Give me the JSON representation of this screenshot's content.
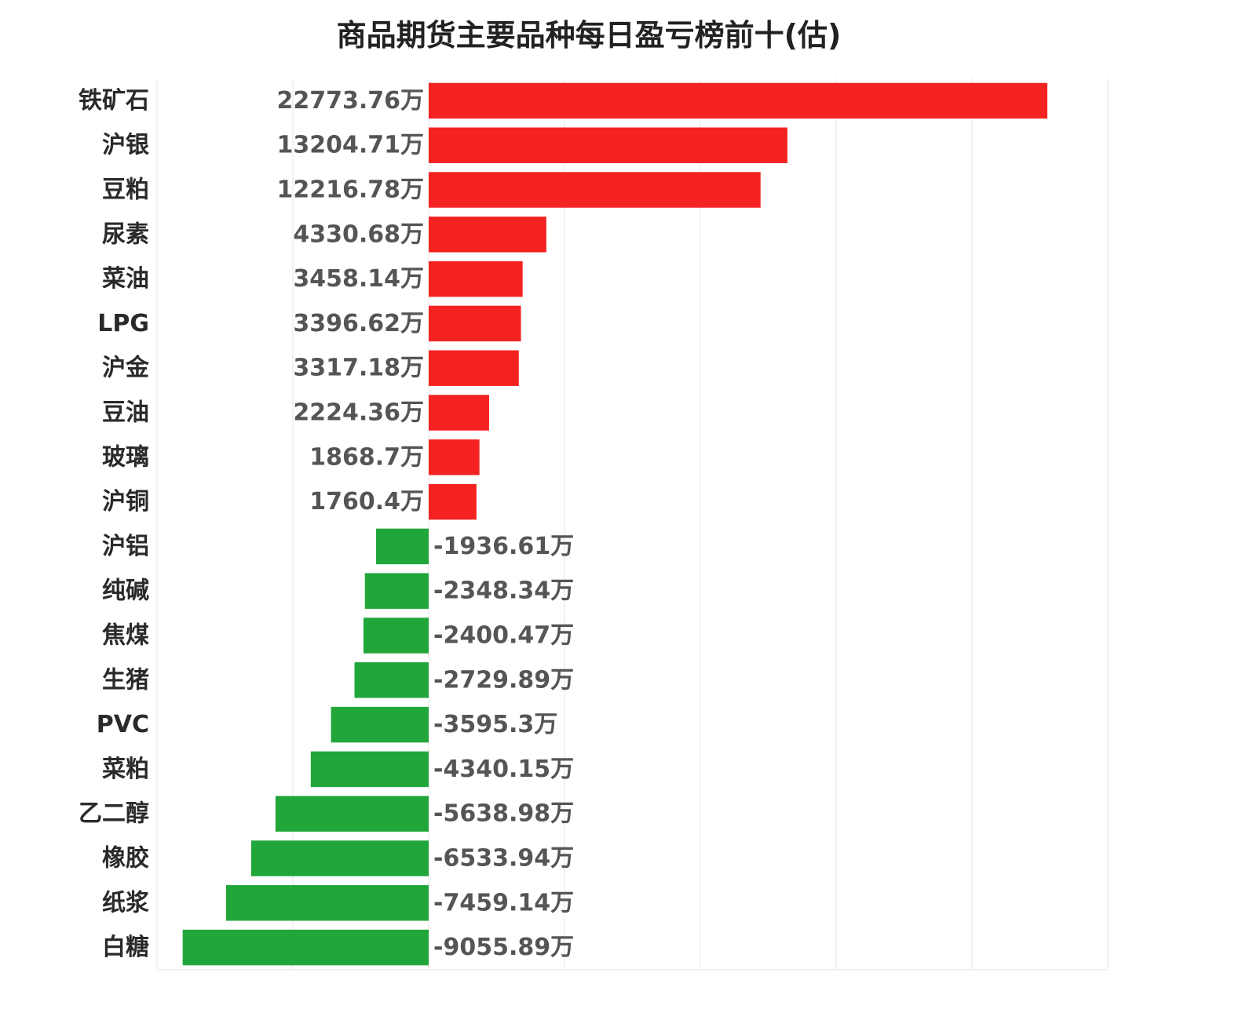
{
  "chart_data": {
    "type": "bar",
    "orientation": "horizontal",
    "title": "商品期货主要品种每日盈亏榜前十(估)",
    "unit_suffix": "万",
    "xlim": [
      -10000,
      25000
    ],
    "grid": true,
    "colors": {
      "positive": "#f52222",
      "negative": "#21a63a",
      "grid": "#e6e6e6"
    },
    "categories": [
      "铁矿石",
      "沪银",
      "豆粕",
      "尿素",
      "菜油",
      "LPG",
      "沪金",
      "豆油",
      "玻璃",
      "沪铜",
      "沪铝",
      "纯碱",
      "焦煤",
      "生猪",
      "PVC",
      "菜粕",
      "乙二醇",
      "橡胶",
      "纸浆",
      "白糖"
    ],
    "values": [
      22773.76,
      13204.71,
      12216.78,
      4330.68,
      3458.14,
      3396.62,
      3317.18,
      2224.36,
      1868.7,
      1760.4,
      -1936.61,
      -2348.34,
      -2400.47,
      -2729.89,
      -3595.3,
      -4340.15,
      -5638.98,
      -6533.94,
      -7459.14,
      -9055.89
    ]
  }
}
